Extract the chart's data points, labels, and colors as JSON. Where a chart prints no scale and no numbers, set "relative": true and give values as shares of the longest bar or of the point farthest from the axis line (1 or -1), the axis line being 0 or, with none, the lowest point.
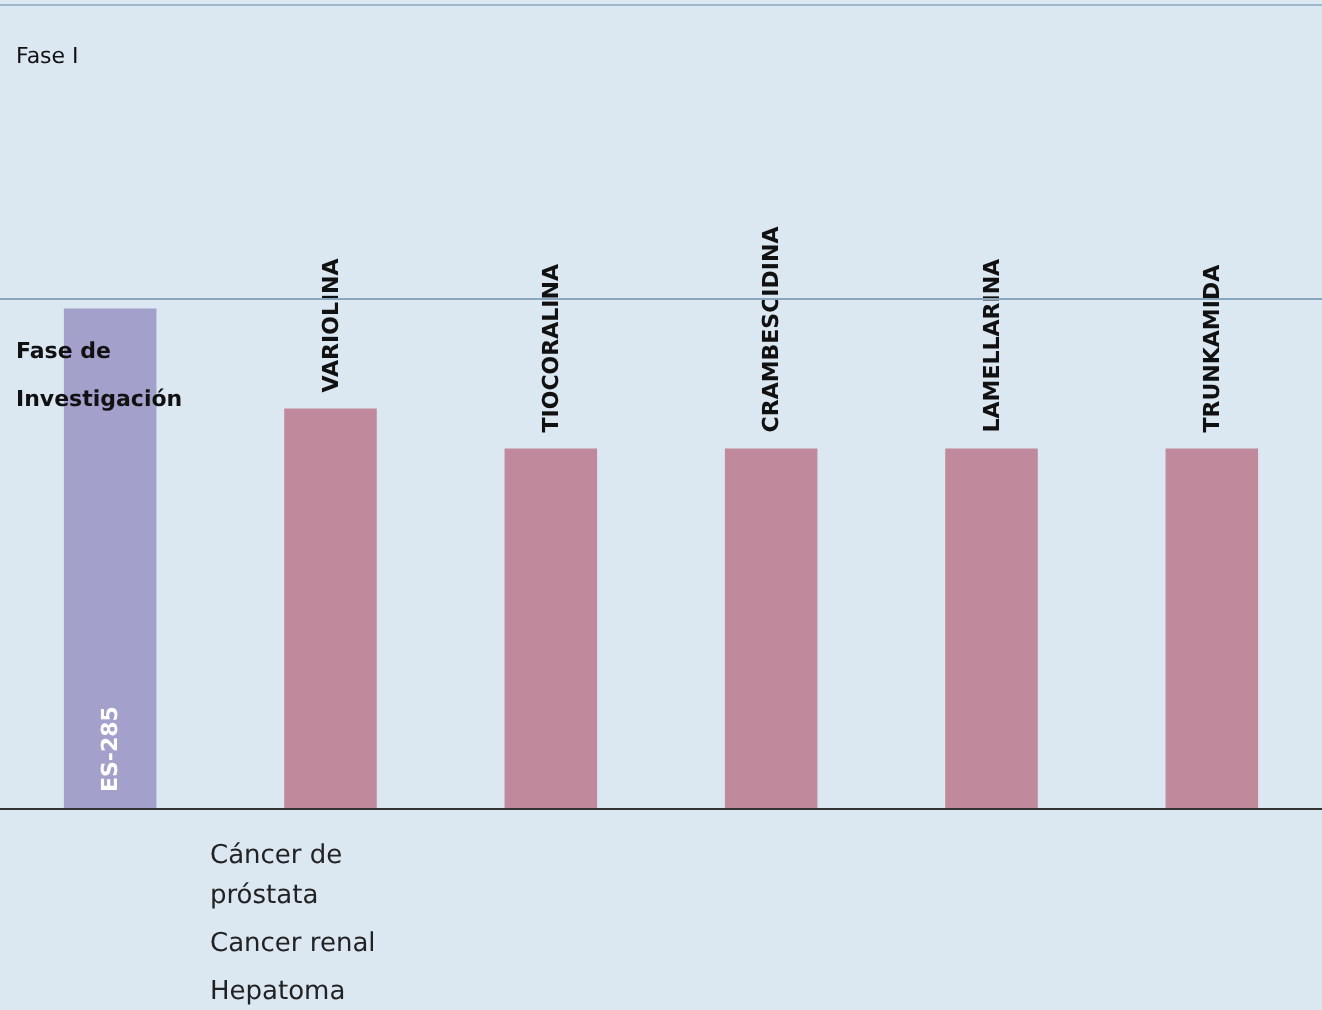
{
  "chart_data": {
    "type": "bar",
    "relative": true,
    "tick_labels": false,
    "categories": [
      "ES-285",
      "VARIOLINA",
      "TIOCORALINA",
      "CRAMBESCIDINA",
      "LAMELLARINA",
      "TRUNKAMIDA"
    ],
    "values": [
      1,
      0.8,
      0.72,
      0.72,
      0.72,
      0.72
    ],
    "colors": [
      "#a3a0cc",
      "#c08a9c",
      "#c08a9c",
      "#c08a9c",
      "#c08a9c",
      "#c08a9c"
    ],
    "ref_lines": [
      {
        "axis": "y",
        "value": 1.61,
        "label": "Fase I",
        "color": "#9fb8cc"
      },
      {
        "axis": "y",
        "value": 1.02,
        "label": "Fase de Investigación",
        "color": "#8aa6bd"
      }
    ],
    "annotations": [
      "Cáncer de próstata",
      "Cancer renal",
      "Hepatoma"
    ]
  }
}
